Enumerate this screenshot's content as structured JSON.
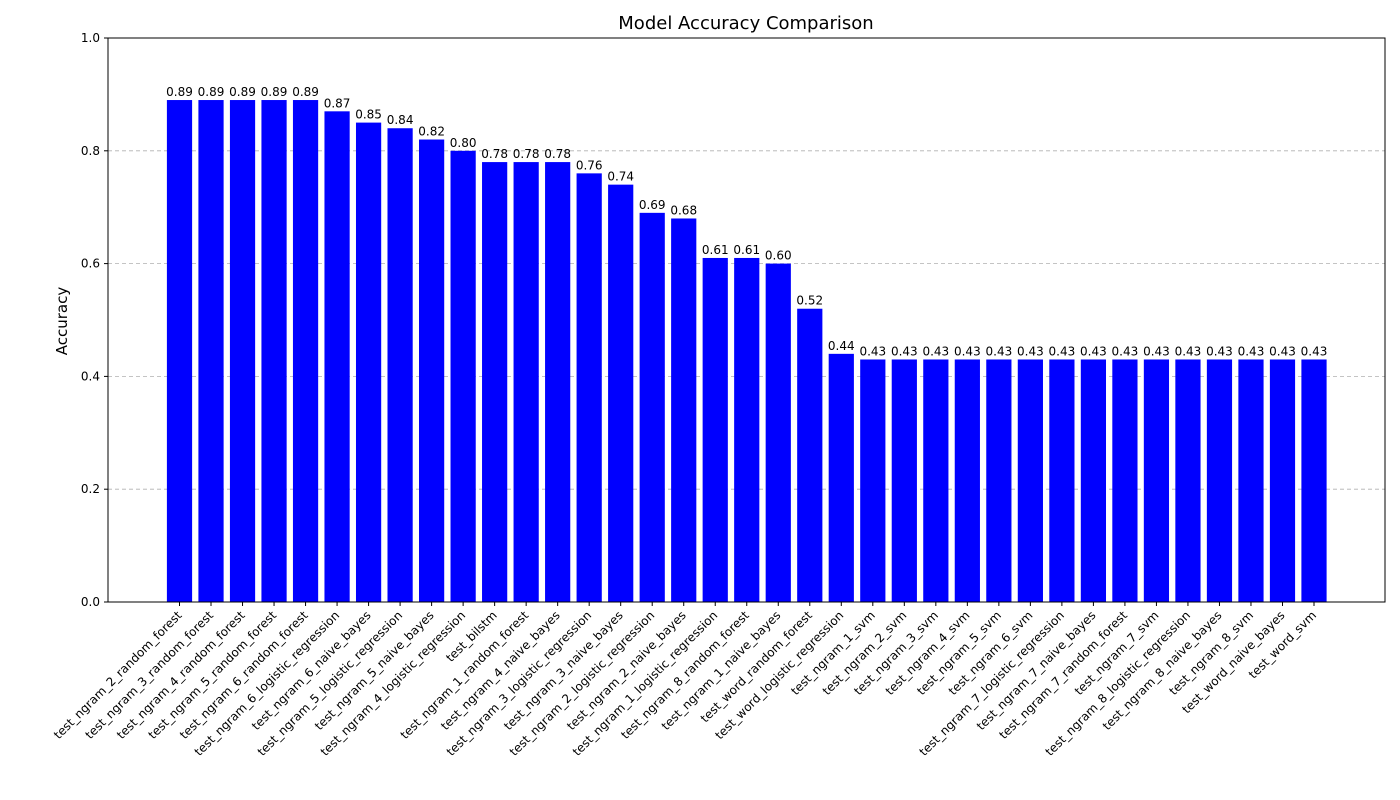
{
  "chart_data": {
    "type": "bar",
    "title": "Model Accuracy Comparison",
    "xlabel": "",
    "ylabel": "Accuracy",
    "ylim": [
      0,
      1.0
    ],
    "yticks": [
      "0.0",
      "0.2",
      "0.4",
      "0.6",
      "0.8",
      "1.0"
    ],
    "grid": "y-dashed",
    "bar_color": "#0000ff",
    "categories": [
      "test_ngram_2_random_forest",
      "test_ngram_3_random_forest",
      "test_ngram_4_random_forest",
      "test_ngram_5_random_forest",
      "test_ngram_6_random_forest",
      "test_ngram_6_logistic_regression",
      "test_ngram_6_naive_bayes",
      "test_ngram_5_logistic_regression",
      "test_ngram_5_naive_bayes",
      "test_ngram_4_logistic_regression",
      "test_bilstm",
      "test_ngram_1_random_forest",
      "test_ngram_4_naive_bayes",
      "test_ngram_3_logistic_regression",
      "test_ngram_3_naive_bayes",
      "test_ngram_2_logistic_regression",
      "test_ngram_2_naive_bayes",
      "test_ngram_1_logistic_regression",
      "test_ngram_8_random_forest",
      "test_ngram_1_naive_bayes",
      "test_word_random_forest",
      "test_word_logistic_regression",
      "test_ngram_1_svm",
      "test_ngram_2_svm",
      "test_ngram_3_svm",
      "test_ngram_4_svm",
      "test_ngram_5_svm",
      "test_ngram_6_svm",
      "test_ngram_7_logistic_regression",
      "test_ngram_7_naive_bayes",
      "test_ngram_7_random_forest",
      "test_ngram_7_svm",
      "test_ngram_8_logistic_regression",
      "test_ngram_8_naive_bayes",
      "test_ngram_8_svm",
      "test_word_naive_bayes",
      "test_word_svm"
    ],
    "values": [
      0.89,
      0.89,
      0.89,
      0.89,
      0.89,
      0.87,
      0.85,
      0.84,
      0.82,
      0.8,
      0.78,
      0.78,
      0.78,
      0.76,
      0.74,
      0.69,
      0.68,
      0.61,
      0.61,
      0.6,
      0.52,
      0.44,
      0.43,
      0.43,
      0.43,
      0.43,
      0.43,
      0.43,
      0.43,
      0.43,
      0.43,
      0.43,
      0.43,
      0.43,
      0.43,
      0.43,
      0.43
    ]
  }
}
